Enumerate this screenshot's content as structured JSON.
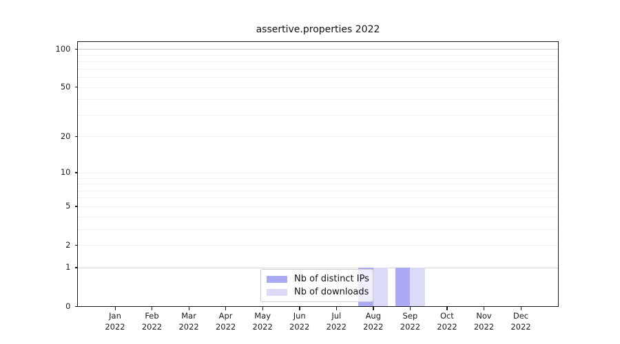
{
  "chart_data": {
    "type": "bar",
    "title": "assertive.properties 2022",
    "categories": [
      "Jan 2022",
      "Feb 2022",
      "Mar 2022",
      "Apr 2022",
      "May 2022",
      "Jun 2022",
      "Jul 2022",
      "Aug 2022",
      "Sep 2022",
      "Oct 2022",
      "Nov 2022",
      "Dec 2022"
    ],
    "series": [
      {
        "name": "Nb of distinct IPs",
        "color": "#a9a9f4",
        "values": [
          0,
          0,
          0,
          0,
          0,
          0,
          0,
          1,
          1,
          0,
          0,
          0
        ]
      },
      {
        "name": "Nb of downloads",
        "color": "#dbdbf8",
        "values": [
          0,
          0,
          0,
          0,
          0,
          0,
          0,
          1,
          1,
          0,
          0,
          0
        ]
      }
    ],
    "xlabel": "",
    "ylabel": "",
    "x_tick_year": "2022",
    "y_axis": {
      "scale": "log1p",
      "ticks": [
        0,
        1,
        2,
        5,
        10,
        20,
        50,
        100
      ],
      "max": 113.6,
      "gridlines": [
        2,
        3,
        4,
        5,
        6,
        7,
        8,
        9,
        10,
        20,
        30,
        40,
        50,
        60,
        70,
        80,
        90
      ]
    },
    "grid": true,
    "legend_position": "lower center",
    "colors": {
      "grid_minor": "#f0f0f0",
      "grid_level_1": "#d6d6d6",
      "grid_level_100": "#c9c9c9",
      "axis": "#141414",
      "tick_label": "#1a1a1a",
      "background": "#ffffff"
    }
  }
}
